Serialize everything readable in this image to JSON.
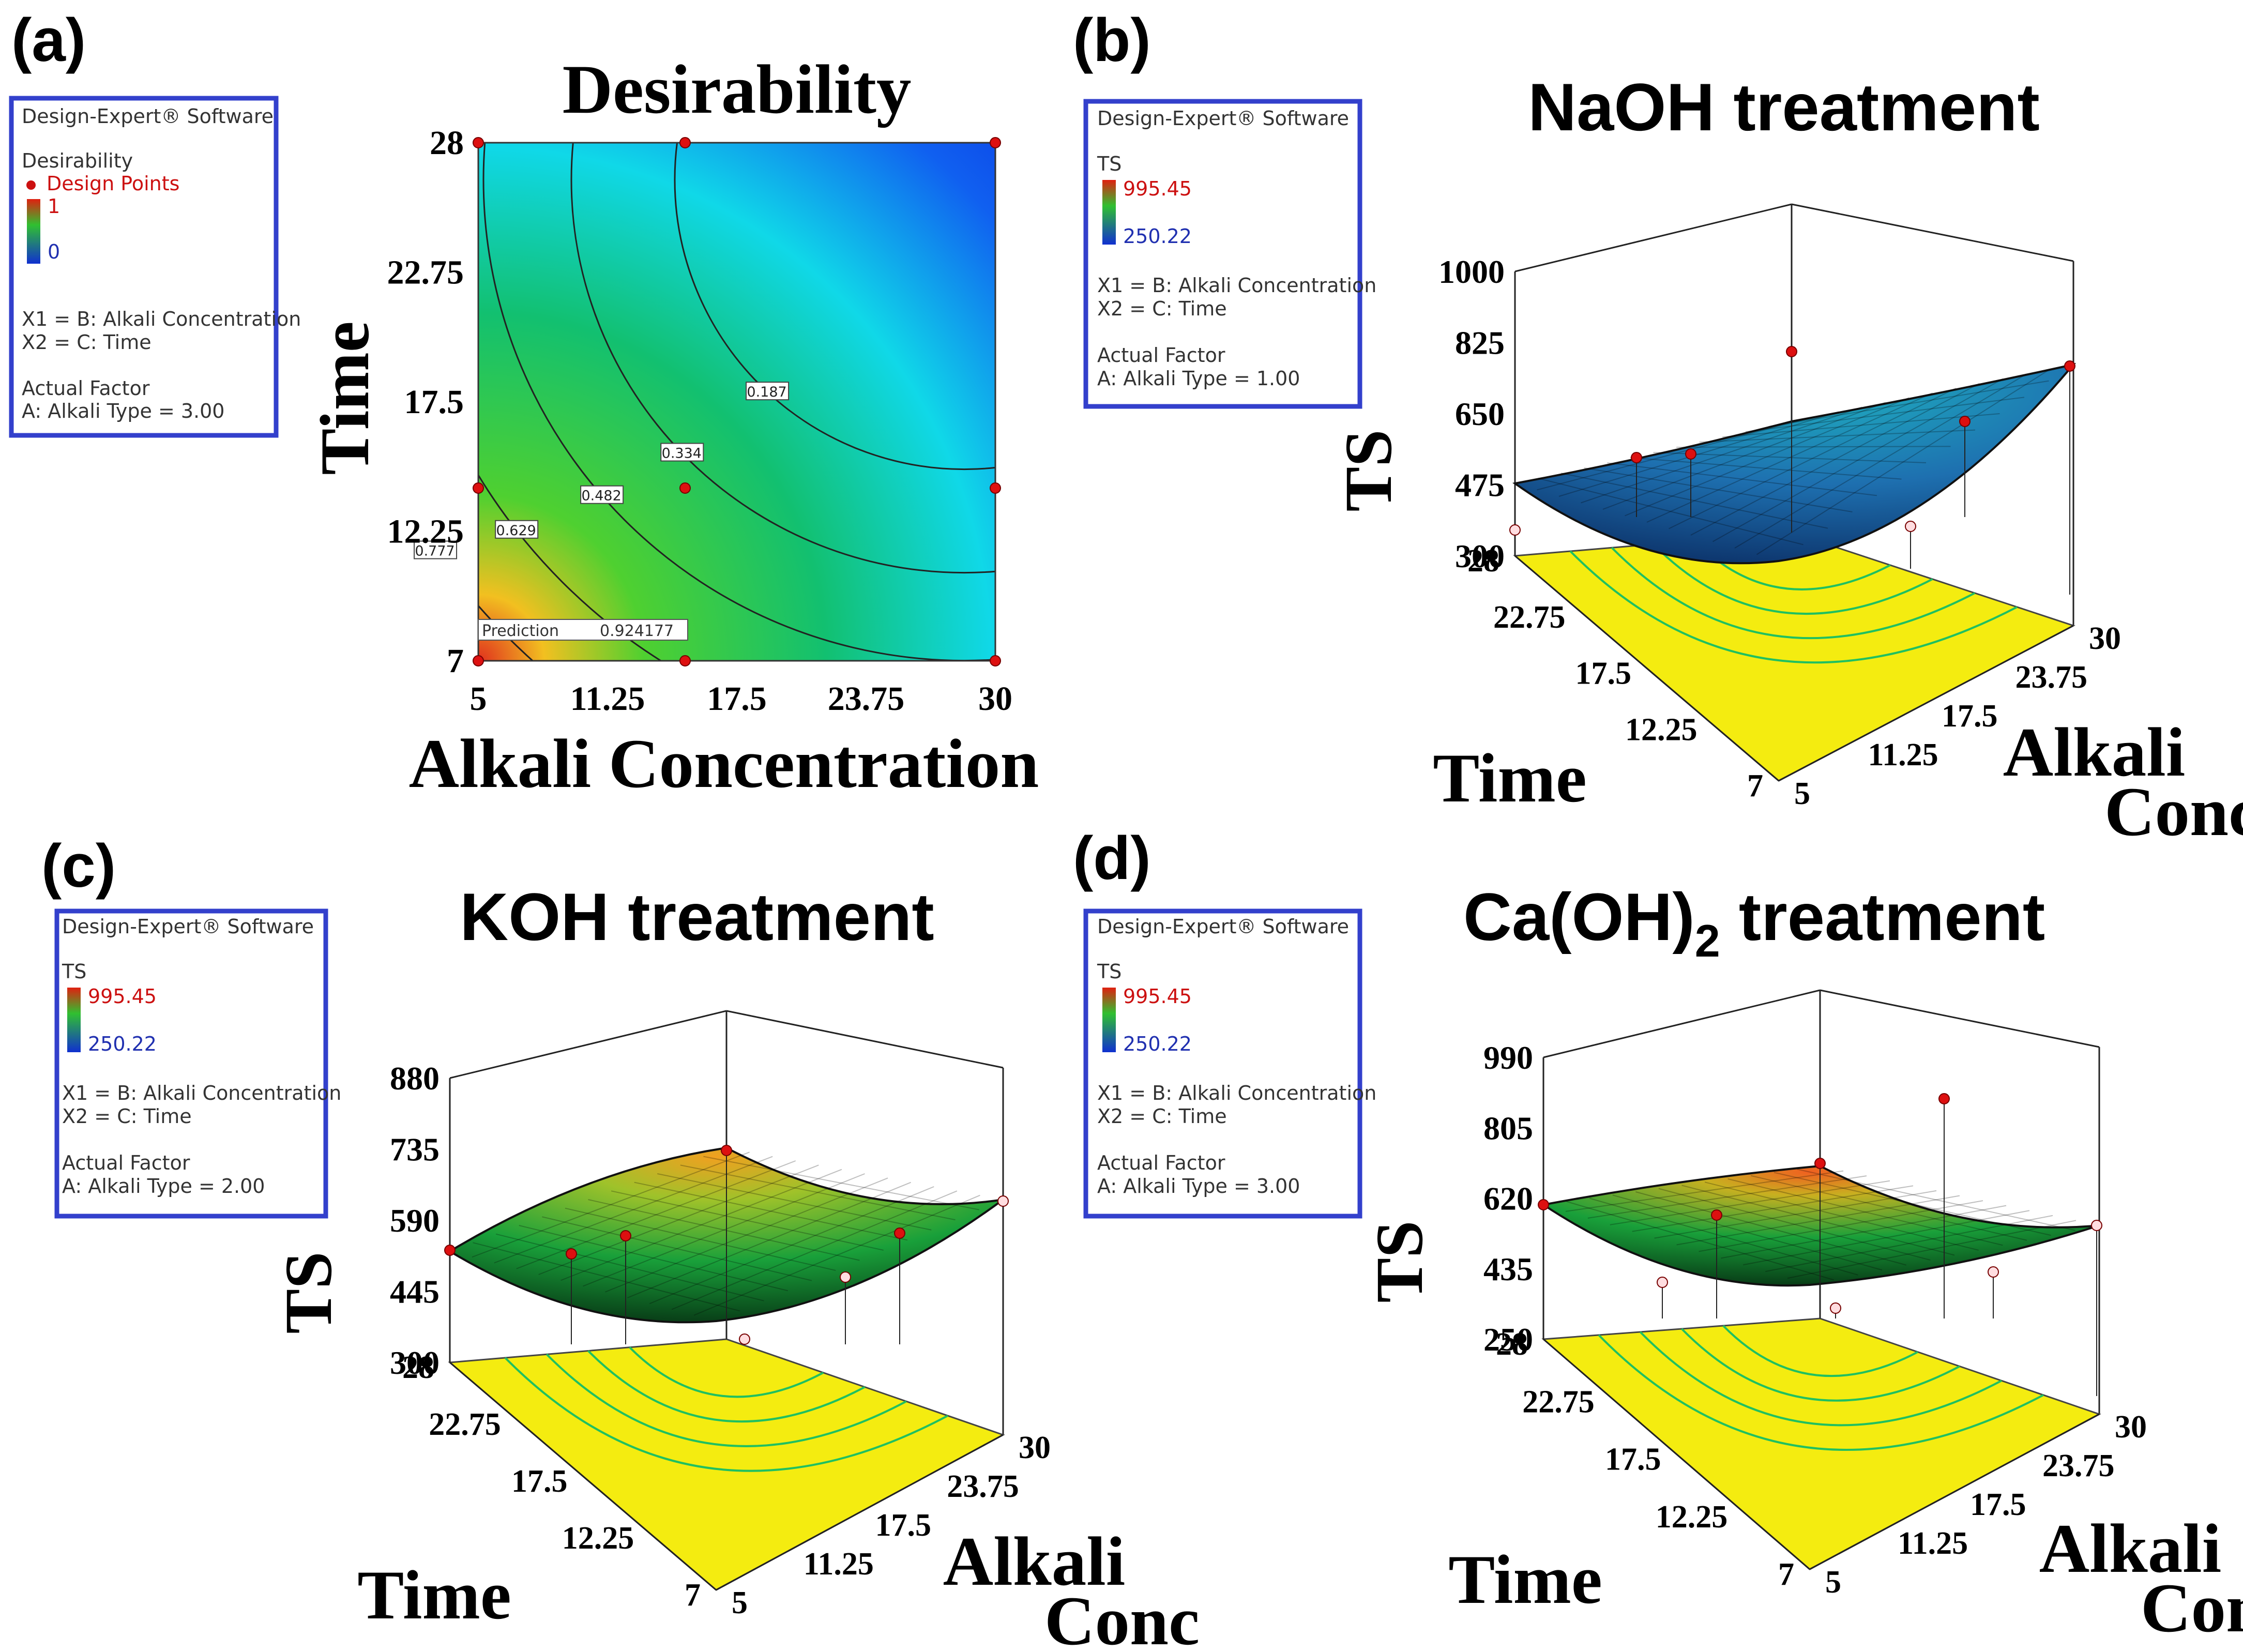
{
  "panels": [
    {
      "id": "a",
      "label": "(a)",
      "title": "Desirability",
      "legend": {
        "software": "Design-Expert® Software",
        "response": "Desirability",
        "design_points": "Design Points",
        "high": "1",
        "low": "0",
        "x1": "X1 = B: Alkali Concentration",
        "x2": "X2 = C: Time",
        "actual_factor_label": "Actual Factor",
        "actual_factor": "A: Alkali Type = 3.00"
      }
    },
    {
      "id": "b",
      "label": "(b)",
      "title": "NaOH treatment",
      "legend": {
        "software": "Design-Expert® Software",
        "response": "TS",
        "high": "995.45",
        "low": "250.22",
        "x1": "X1 = B: Alkali Concentration",
        "x2": "X2 = C: Time",
        "actual_factor_label": "Actual Factor",
        "actual_factor": "A: Alkali Type = 1.00"
      }
    },
    {
      "id": "c",
      "label": "(c)",
      "title": "KOH treatment",
      "legend": {
        "software": "Design-Expert® Software",
        "response": "TS",
        "high": "995.45",
        "low": "250.22",
        "x1": "X1 = B: Alkali Concentration",
        "x2": "X2 = C: Time",
        "actual_factor_label": "Actual Factor",
        "actual_factor": "A: Alkali Type = 2.00"
      }
    },
    {
      "id": "d",
      "label": "(d)",
      "title_main": "Ca(OH)",
      "title_sub": "2",
      "title_end": " treatment",
      "legend": {
        "software": "Design-Expert® Software",
        "response": "TS",
        "high": "995.45",
        "low": "250.22",
        "x1": "X1 = B: Alkali Concentration",
        "x2": "X2 = C: Time",
        "actual_factor_label": "Actual Factor",
        "actual_factor": "A: Alkali Type = 3.00"
      }
    }
  ],
  "chart_data": [
    {
      "type": "heatmap",
      "panel": "a",
      "title": "Desirability",
      "xlabel": "Alkali Concentration",
      "ylabel": "Time",
      "xlim": [
        5,
        30
      ],
      "ylim": [
        7,
        28
      ],
      "x_ticks": [
        "5",
        "11.25",
        "17.5",
        "23.75",
        "30"
      ],
      "y_ticks": [
        "7",
        "12.25",
        "17.5",
        "22.75",
        "28"
      ],
      "contours": [
        {
          "value": "0.777"
        },
        {
          "value": "0.629"
        },
        {
          "value": "0.482"
        },
        {
          "value": "0.334"
        },
        {
          "value": "0.187"
        }
      ],
      "prediction_label": "Prediction",
      "prediction_value": "0.924177",
      "design_points": [
        [
          5,
          28
        ],
        [
          15,
          28
        ],
        [
          30,
          28
        ],
        [
          5,
          14
        ],
        [
          15,
          14
        ],
        [
          30,
          14
        ],
        [
          5,
          7
        ],
        [
          15,
          7
        ],
        [
          30,
          7
        ]
      ],
      "colors": {
        "high": "#e0301e",
        "mid": "#22cc22",
        "low": "#0a3cf0"
      }
    },
    {
      "type": "surface3d",
      "panel": "b",
      "title": "NaOH treatment",
      "zlabel": "TS",
      "xlabel": "Time",
      "ylabel_line1": "Alkali",
      "ylabel_line2": "Conc",
      "z_ticks": [
        "300",
        "475",
        "650",
        "825",
        "1000"
      ],
      "time_ticks": [
        "28",
        "22.75",
        "17.5",
        "12.25",
        "7"
      ],
      "conc_ticks": [
        "5",
        "11.25",
        "17.5",
        "23.75",
        "30"
      ],
      "surface_colors": [
        "#0f3fa0",
        "#1e90c8",
        "#1fb0c0",
        "#20a060"
      ]
    },
    {
      "type": "surface3d",
      "panel": "c",
      "title": "KOH treatment",
      "zlabel": "TS",
      "xlabel": "Time",
      "ylabel_line1": "Alkali",
      "ylabel_line2": "Conc",
      "z_ticks": [
        "300",
        "445",
        "590",
        "735",
        "880"
      ],
      "time_ticks": [
        "28",
        "22.75",
        "17.5",
        "12.25",
        "7"
      ],
      "conc_ticks": [
        "5",
        "11.25",
        "17.5",
        "23.75",
        "30"
      ],
      "surface_colors": [
        "#0e7a2a",
        "#19a03a",
        "#7fc22a",
        "#f0a020"
      ]
    },
    {
      "type": "surface3d",
      "panel": "d",
      "title": "Ca(OH)2 treatment",
      "zlabel": "TS",
      "xlabel": "Time",
      "ylabel_line1": "Alkali",
      "ylabel_line2": "Conc",
      "z_ticks": [
        "250",
        "435",
        "620",
        "805",
        "990"
      ],
      "time_ticks": [
        "28",
        "22.75",
        "17.5",
        "12.25",
        "7"
      ],
      "conc_ticks": [
        "5",
        "11.25",
        "17.5",
        "23.75",
        "30"
      ],
      "surface_colors": [
        "#0e7a2a",
        "#19a03a",
        "#b8c020",
        "#f06020"
      ]
    }
  ]
}
